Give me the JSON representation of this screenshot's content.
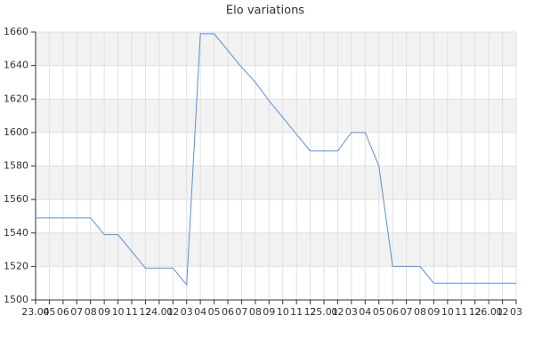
{
  "chart_data": {
    "type": "line",
    "title": "Elo variations",
    "categories": [
      "23.04",
      "05",
      "06",
      "07",
      "08",
      "09",
      "10",
      "11",
      "12",
      "24.01",
      "02",
      "03",
      "04",
      "05",
      "06",
      "07",
      "08",
      "09",
      "10",
      "11",
      "12",
      "25.01",
      "02",
      "03",
      "04",
      "05",
      "06",
      "07",
      "08",
      "09",
      "10",
      "11",
      "12",
      "26.01",
      "02",
      "03"
    ],
    "series": [
      {
        "name": "Elo",
        "color": "#5b8fd9",
        "values": [
          1549,
          1549,
          1549,
          1549,
          1549,
          1539,
          1539,
          1529,
          1519,
          1519,
          1519,
          1509,
          1659,
          1659,
          1649,
          1639,
          1630,
          1619,
          1609,
          1599,
          1589,
          1589,
          1589,
          1600,
          1600,
          1580,
          1520,
          1520,
          1520,
          1510,
          1510,
          1510,
          1510,
          1510,
          1510,
          1510
        ]
      }
    ],
    "ylim": [
      1500,
      1660
    ],
    "yticks": [
      1500,
      1520,
      1540,
      1560,
      1580,
      1600,
      1620,
      1640,
      1660
    ],
    "grid": true,
    "banded": true
  }
}
